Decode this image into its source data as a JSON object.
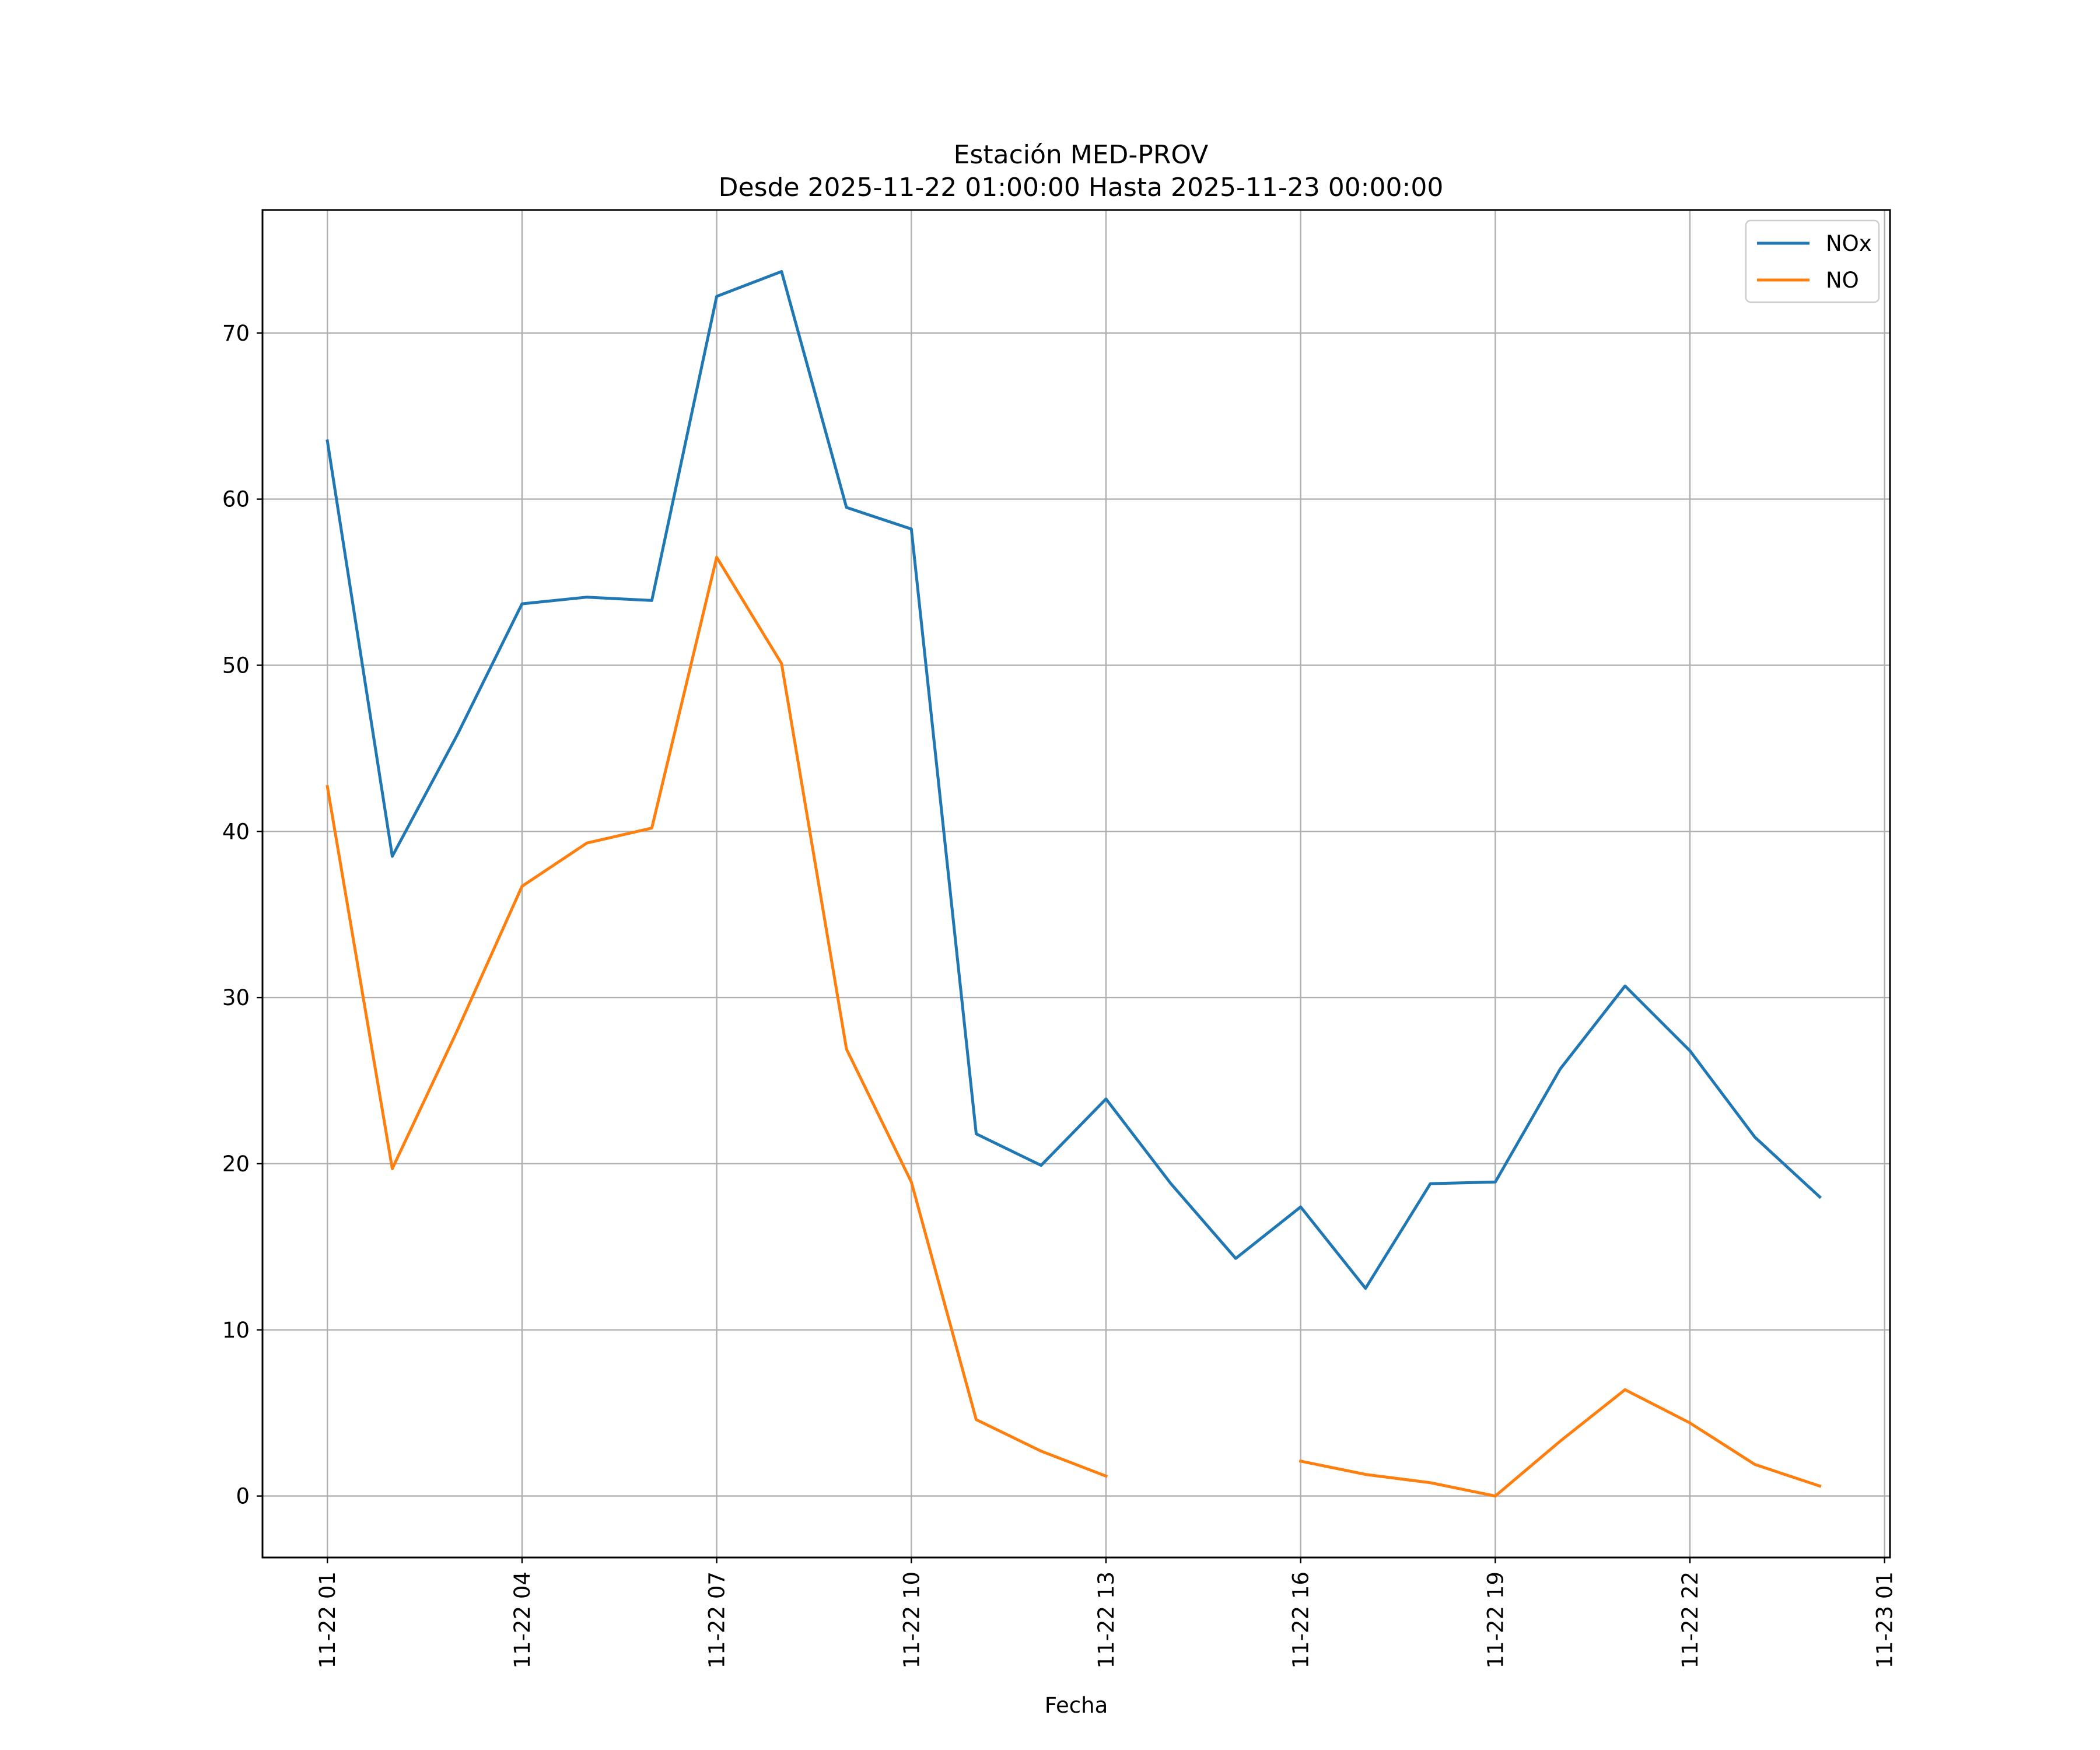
{
  "chart_data": {
    "type": "line",
    "title": "Estación MED-PROV",
    "subtitle": "Desde 2025-11-22 01:00:00 Hasta 2025-11-23 00:00:00",
    "xlabel": "Fecha",
    "ylabel": "",
    "x": [
      "2025-11-22 01:00",
      "2025-11-22 02:00",
      "2025-11-22 03:00",
      "2025-11-22 04:00",
      "2025-11-22 05:00",
      "2025-11-22 06:00",
      "2025-11-22 07:00",
      "2025-11-22 08:00",
      "2025-11-22 09:00",
      "2025-11-22 10:00",
      "2025-11-22 11:00",
      "2025-11-22 12:00",
      "2025-11-22 13:00",
      "2025-11-22 14:00",
      "2025-11-22 15:00",
      "2025-11-22 16:00",
      "2025-11-22 17:00",
      "2025-11-22 18:00",
      "2025-11-22 19:00",
      "2025-11-22 20:00",
      "2025-11-22 21:00",
      "2025-11-22 22:00",
      "2025-11-22 23:00",
      "2025-11-23 00:00"
    ],
    "series": [
      {
        "name": "NOx",
        "color": "#1f77b4",
        "values": [
          63.5,
          38.5,
          45.8,
          53.7,
          54.1,
          53.9,
          72.2,
          73.7,
          59.5,
          58.2,
          21.8,
          19.9,
          23.9,
          18.8,
          14.3,
          17.4,
          12.5,
          18.8,
          18.9,
          25.7,
          30.7,
          26.8,
          21.6,
          18.0
        ]
      },
      {
        "name": "NO",
        "color": "#ff7f0e",
        "values": [
          42.7,
          19.7,
          28.0,
          36.7,
          39.3,
          40.2,
          56.5,
          50.1,
          26.9,
          18.9,
          4.6,
          2.7,
          1.2,
          null,
          null,
          2.1,
          1.3,
          0.8,
          0.0,
          3.3,
          6.4,
          4.4,
          1.9,
          0.6
        ]
      }
    ],
    "xticks": [
      "11-22 01",
      "11-22 04",
      "11-22 07",
      "11-22 10",
      "11-22 13",
      "11-22 16",
      "11-22 19",
      "11-22 22",
      "11-23 01"
    ],
    "yticks": [
      "0",
      "10",
      "20",
      "30",
      "40",
      "50",
      "60",
      "70"
    ],
    "xlim": [
      "2025-11-22 00:00",
      "2025-11-23 01:05"
    ],
    "ylim": [
      -3.7,
      77.4
    ],
    "grid": true,
    "legend_position": "upper right"
  }
}
